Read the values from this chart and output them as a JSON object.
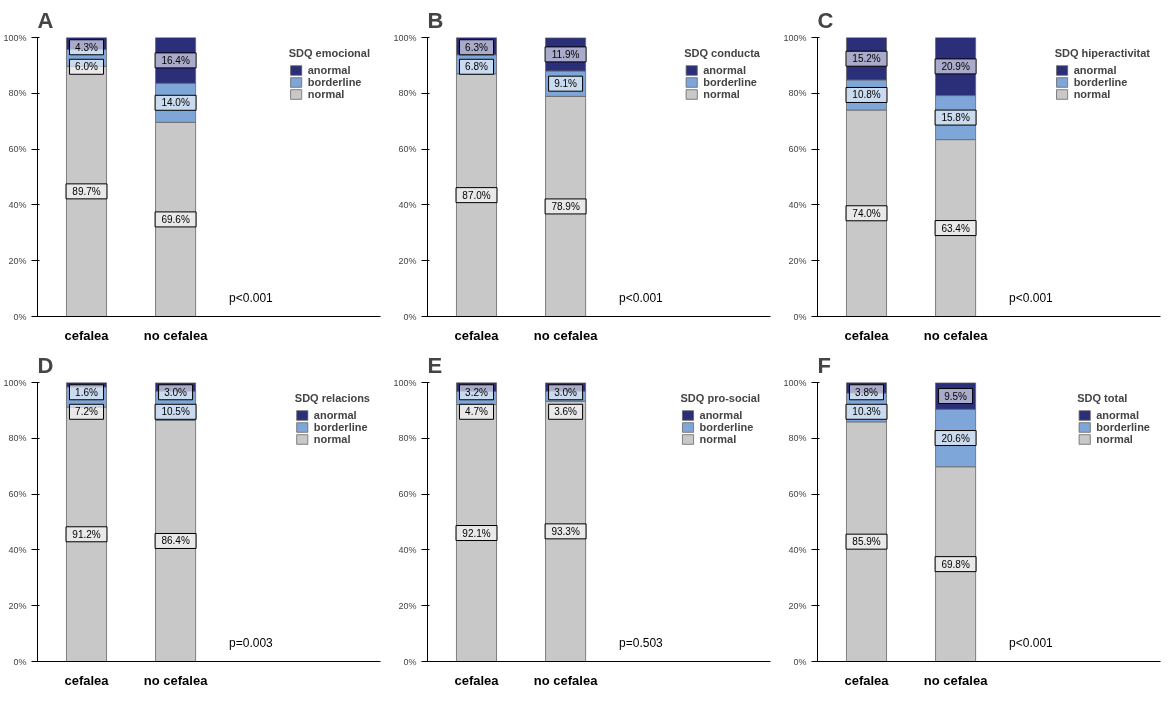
{
  "chart_data": [
    {
      "type": "bar",
      "stacked": true,
      "title": "A",
      "legend_title": "SDQ emocional",
      "legend": "right",
      "grid": false,
      "categories": [
        "cefalea",
        "no cefalea"
      ],
      "ylim": [
        0,
        100
      ],
      "yticks": [
        {
          "value": 0,
          "label": "0%"
        },
        {
          "value": 20,
          "label": "20%"
        },
        {
          "value": 40,
          "label": "40%"
        },
        {
          "value": 60,
          "label": "60%"
        },
        {
          "value": 80,
          "label": "80%"
        },
        {
          "value": 100,
          "label": "100%"
        }
      ],
      "annotations": [
        "p<0.001"
      ],
      "series": [
        {
          "name": "normal",
          "color": "#c8c8c8",
          "values": [
            89.7,
            69.6
          ],
          "value_labels": [
            "89.7%",
            "69.6%"
          ]
        },
        {
          "name": "borderline",
          "color": "#7ea6d8",
          "values": [
            6.0,
            14.0
          ],
          "value_labels": [
            "6.0%",
            "14.0%"
          ]
        },
        {
          "name": "anormal",
          "color": "#2b2f7a",
          "values": [
            4.3,
            16.4
          ],
          "value_labels": [
            "4.3%",
            "16.4%"
          ]
        }
      ]
    },
    {
      "type": "bar",
      "stacked": true,
      "title": "B",
      "legend_title": "SDQ conducta",
      "legend": "right",
      "grid": false,
      "categories": [
        "cefalea",
        "no cefalea"
      ],
      "ylim": [
        0,
        100
      ],
      "yticks": [
        {
          "value": 0,
          "label": "0%"
        },
        {
          "value": 20,
          "label": "20%"
        },
        {
          "value": 40,
          "label": "40%"
        },
        {
          "value": 60,
          "label": "60%"
        },
        {
          "value": 80,
          "label": "80%"
        },
        {
          "value": 100,
          "label": "100%"
        }
      ],
      "annotations": [
        "p<0.001"
      ],
      "series": [
        {
          "name": "normal",
          "color": "#c8c8c8",
          "values": [
            87.0,
            78.9
          ],
          "value_labels": [
            "87.0%",
            "78.9%"
          ]
        },
        {
          "name": "borderline",
          "color": "#7ea6d8",
          "values": [
            6.8,
            9.1
          ],
          "value_labels": [
            "6.8%",
            "9.1%"
          ]
        },
        {
          "name": "anormal",
          "color": "#2b2f7a",
          "values": [
            6.3,
            11.9
          ],
          "value_labels": [
            "6.3%",
            "11.9%"
          ]
        }
      ]
    },
    {
      "type": "bar",
      "stacked": true,
      "title": "C",
      "legend_title": "SDQ hiperactivitat",
      "legend": "right",
      "grid": false,
      "categories": [
        "cefalea",
        "no cefalea"
      ],
      "ylim": [
        0,
        100
      ],
      "yticks": [
        {
          "value": 0,
          "label": "0%"
        },
        {
          "value": 20,
          "label": "20%"
        },
        {
          "value": 40,
          "label": "40%"
        },
        {
          "value": 60,
          "label": "60%"
        },
        {
          "value": 80,
          "label": "80%"
        },
        {
          "value": 100,
          "label": "100%"
        }
      ],
      "annotations": [
        "p<0.001"
      ],
      "series": [
        {
          "name": "normal",
          "color": "#c8c8c8",
          "values": [
            74.0,
            63.4
          ],
          "value_labels": [
            "74.0%",
            "63.4%"
          ]
        },
        {
          "name": "borderline",
          "color": "#7ea6d8",
          "values": [
            10.8,
            15.8
          ],
          "value_labels": [
            "10.8%",
            "15.8%"
          ]
        },
        {
          "name": "anormal",
          "color": "#2b2f7a",
          "values": [
            15.2,
            20.9
          ],
          "value_labels": [
            "15.2%",
            "20.9%"
          ]
        }
      ]
    },
    {
      "type": "bar",
      "stacked": true,
      "title": "D",
      "legend_title": "SDQ relacions",
      "legend": "right",
      "grid": false,
      "categories": [
        "cefalea",
        "no cefalea"
      ],
      "ylim": [
        0,
        100
      ],
      "yticks": [
        {
          "value": 0,
          "label": "0%"
        },
        {
          "value": 20,
          "label": "20%"
        },
        {
          "value": 40,
          "label": "40%"
        },
        {
          "value": 60,
          "label": "60%"
        },
        {
          "value": 80,
          "label": "80%"
        },
        {
          "value": 100,
          "label": "100%"
        }
      ],
      "annotations": [
        "p=0.003"
      ],
      "series": [
        {
          "name": "normal",
          "color": "#c8c8c8",
          "values": [
            91.2,
            86.4
          ],
          "value_labels": [
            "91.2%",
            "86.4%"
          ]
        },
        {
          "name": "borderline",
          "color": "#7ea6d8",
          "values": [
            7.2,
            10.5
          ],
          "value_labels": [
            "7.2%",
            "10.5%"
          ]
        },
        {
          "name": "anormal",
          "color": "#2b2f7a",
          "values": [
            1.6,
            3.0
          ],
          "value_labels": [
            "1.6%",
            "3.0%"
          ]
        }
      ]
    },
    {
      "type": "bar",
      "stacked": true,
      "title": "E",
      "legend_title": "SDQ pro-social",
      "legend": "right",
      "grid": false,
      "categories": [
        "cefalea",
        "no cefalea"
      ],
      "ylim": [
        0,
        100
      ],
      "yticks": [
        {
          "value": 0,
          "label": "0%"
        },
        {
          "value": 20,
          "label": "20%"
        },
        {
          "value": 40,
          "label": "40%"
        },
        {
          "value": 60,
          "label": "60%"
        },
        {
          "value": 80,
          "label": "80%"
        },
        {
          "value": 100,
          "label": "100%"
        }
      ],
      "annotations": [
        "p=0.503"
      ],
      "series": [
        {
          "name": "normal",
          "color": "#c8c8c8",
          "values": [
            92.1,
            93.3
          ],
          "value_labels": [
            "92.1%",
            "93.3%"
          ]
        },
        {
          "name": "borderline",
          "color": "#7ea6d8",
          "values": [
            4.7,
            3.6
          ],
          "value_labels": [
            "4.7%",
            "3.6%"
          ]
        },
        {
          "name": "anormal",
          "color": "#2b2f7a",
          "values": [
            3.2,
            3.0
          ],
          "value_labels": [
            "3.2%",
            "3.0%"
          ]
        }
      ]
    },
    {
      "type": "bar",
      "stacked": true,
      "title": "F",
      "legend_title": "SDQ total",
      "legend": "right",
      "grid": false,
      "categories": [
        "cefalea",
        "no cefalea"
      ],
      "ylim": [
        0,
        100
      ],
      "yticks": [
        {
          "value": 0,
          "label": "0%"
        },
        {
          "value": 20,
          "label": "20%"
        },
        {
          "value": 40,
          "label": "40%"
        },
        {
          "value": 60,
          "label": "60%"
        },
        {
          "value": 80,
          "label": "80%"
        },
        {
          "value": 100,
          "label": "100%"
        }
      ],
      "annotations": [
        "p<0.001"
      ],
      "series": [
        {
          "name": "normal",
          "color": "#c8c8c8",
          "values": [
            85.9,
            69.8
          ],
          "value_labels": [
            "85.9%",
            "69.8%"
          ]
        },
        {
          "name": "borderline",
          "color": "#7ea6d8",
          "values": [
            10.3,
            20.6
          ],
          "value_labels": [
            "10.3%",
            "20.6%"
          ]
        },
        {
          "name": "anormal",
          "color": "#2b2f7a",
          "values": [
            3.8,
            9.5
          ],
          "value_labels": [
            "3.8%",
            "9.5%"
          ]
        }
      ]
    }
  ]
}
